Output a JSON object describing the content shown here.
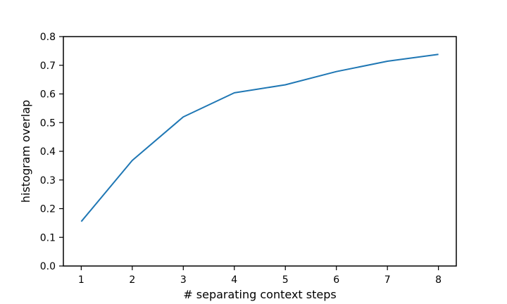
{
  "chart_data": {
    "type": "line",
    "xlabel": "# separating context steps",
    "ylabel": "histogram overlap",
    "x": [
      1,
      2,
      3,
      4,
      5,
      6,
      7,
      8
    ],
    "series": [
      {
        "values": [
          0.155,
          0.368,
          0.52,
          0.604,
          0.632,
          0.678,
          0.714,
          0.738
        ],
        "color": "#1f77b4"
      }
    ],
    "xlim": [
      0.65,
      8.35
    ],
    "ylim": [
      0.0,
      0.8
    ],
    "xticks": [
      "1",
      "2",
      "3",
      "4",
      "5",
      "6",
      "7",
      "8"
    ],
    "yticks": [
      "0.0",
      "0.1",
      "0.2",
      "0.3",
      "0.4",
      "0.5",
      "0.6",
      "0.7",
      "0.8"
    ],
    "grid": false,
    "legend": "none"
  }
}
